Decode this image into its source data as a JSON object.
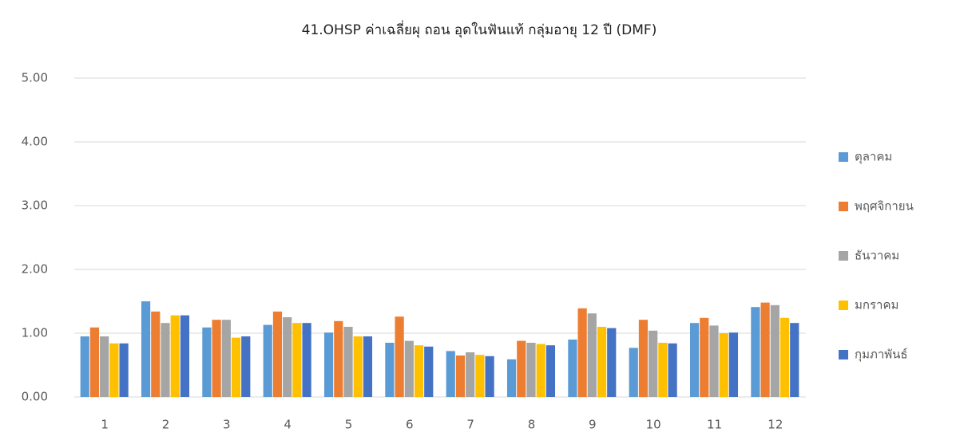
{
  "chart_data": {
    "type": "bar",
    "title": "41.OHSP ค่าเฉลี่ยผุ ถอน อุดในฟันแท้ กลุ่มอายุ 12 ปี  (DMF)",
    "categories": [
      "1",
      "2",
      "3",
      "4",
      "5",
      "6",
      "7",
      "8",
      "9",
      "10",
      "11",
      "12"
    ],
    "series": [
      {
        "name": "ตุลาคม",
        "color": "#5b9bd5",
        "values": [
          0.95,
          1.5,
          1.09,
          1.13,
          1.01,
          0.85,
          0.72,
          0.59,
          0.9,
          0.77,
          1.16,
          1.41
        ]
      },
      {
        "name": "พฤศจิกายน",
        "color": "#ed7d31",
        "values": [
          1.09,
          1.34,
          1.21,
          1.34,
          1.19,
          1.26,
          0.65,
          0.88,
          1.39,
          1.21,
          1.24,
          1.48
        ]
      },
      {
        "name": "ธันวาคม",
        "color": "#a5a5a5",
        "values": [
          0.95,
          1.16,
          1.21,
          1.25,
          1.1,
          0.88,
          0.7,
          0.85,
          1.31,
          1.04,
          1.12,
          1.44
        ]
      },
      {
        "name": "มกราคม",
        "color": "#ffc000",
        "values": [
          0.84,
          1.28,
          0.93,
          1.16,
          0.95,
          0.81,
          0.66,
          0.83,
          1.1,
          0.85,
          1.0,
          1.24
        ]
      },
      {
        "name": "กุมภาพันธ์",
        "color": "#4472c4",
        "values": [
          0.84,
          1.28,
          0.95,
          1.16,
          0.95,
          0.79,
          0.64,
          0.81,
          1.08,
          0.84,
          1.01,
          1.16
        ]
      }
    ],
    "ylim": [
      0,
      5
    ],
    "yticks": [
      {
        "value": 0,
        "label": "0.00"
      },
      {
        "value": 1,
        "label": "1.00"
      },
      {
        "value": 2,
        "label": "2.00"
      },
      {
        "value": 3,
        "label": "3.00"
      },
      {
        "value": 4,
        "label": "4.00"
      },
      {
        "value": 5,
        "label": "5.00"
      }
    ],
    "grid": true,
    "legend": "right"
  }
}
